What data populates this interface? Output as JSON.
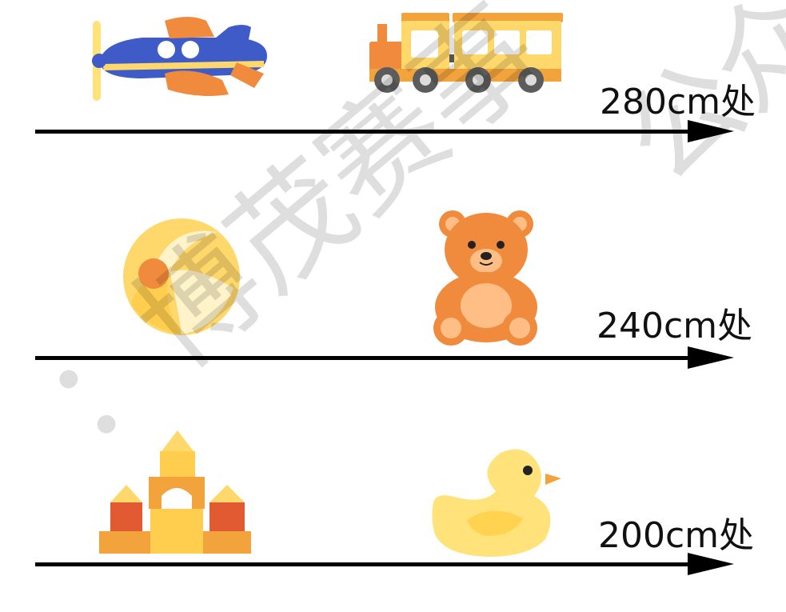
{
  "rows": [
    {
      "label": "280cm处",
      "toys": [
        "airplane-icon",
        "train-icon"
      ]
    },
    {
      "label": "240cm处",
      "toys": [
        "beach-ball-icon",
        "teddy-bear-icon"
      ]
    },
    {
      "label": "200cm处",
      "toys": [
        "building-blocks-icon",
        "rubber-duck-icon"
      ]
    }
  ],
  "watermark": {
    "text": "：博茂赛事",
    "text2": "公众"
  },
  "colors": {
    "orange": "#F08A3C",
    "yellow": "#FFD86B",
    "blue": "#3F5BC7",
    "line": "#000000"
  }
}
